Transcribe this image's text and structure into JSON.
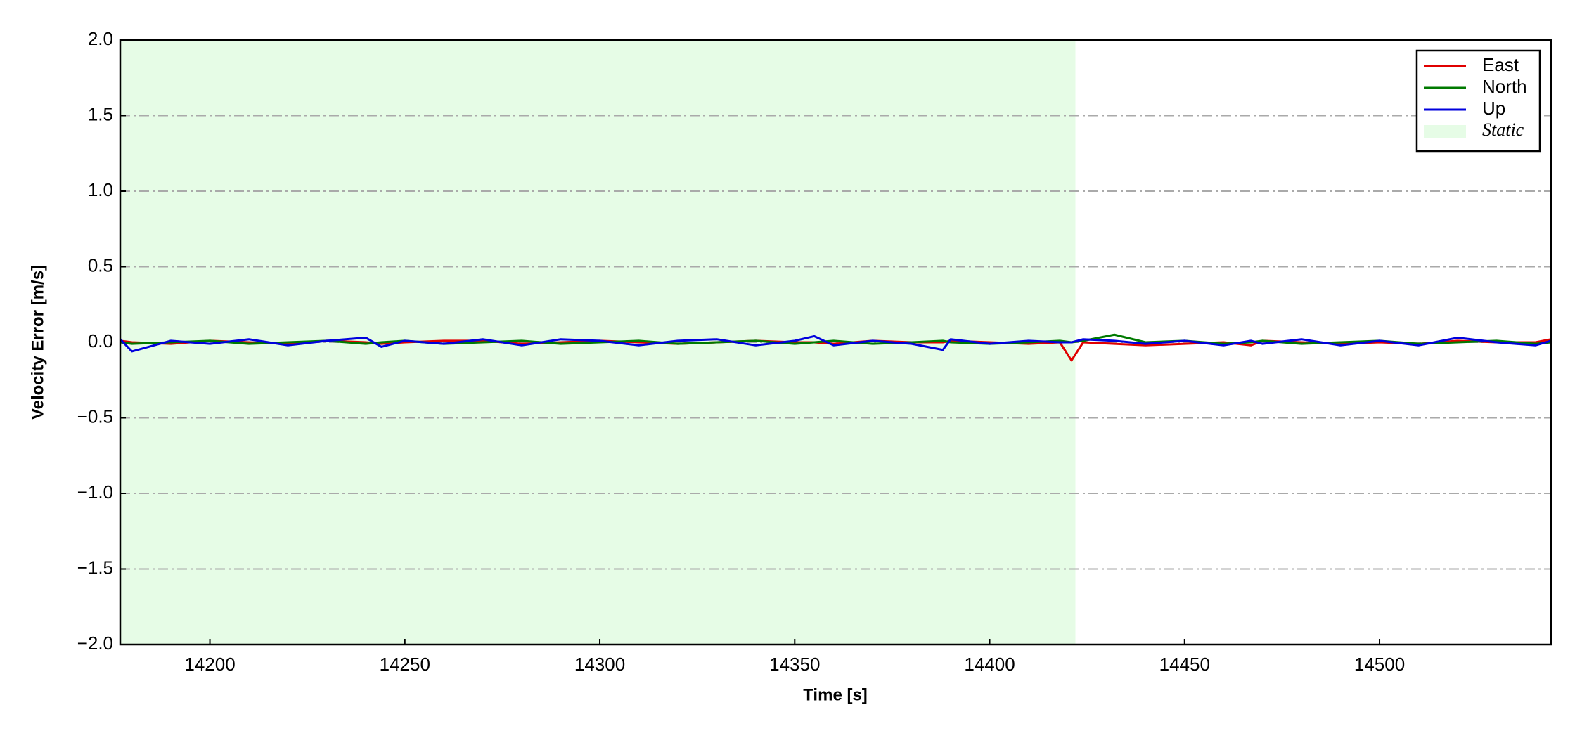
{
  "chart_data": {
    "type": "line",
    "x_label": "Time [s]",
    "y_label": "Velocity Error [m/s]",
    "x": [
      14177,
      14180,
      14190,
      14200,
      14210,
      14220,
      14230,
      14240,
      14244,
      14250,
      14260,
      14270,
      14280,
      14290,
      14300,
      14310,
      14320,
      14330,
      14340,
      14350,
      14355,
      14360,
      14370,
      14380,
      14388,
      14390,
      14400,
      14410,
      14418,
      14421,
      14424,
      14432,
      14440,
      14450,
      14460,
      14467,
      14470,
      14480,
      14490,
      14500,
      14510,
      14520,
      14530,
      14540,
      14544
    ],
    "series": [
      {
        "name": "East",
        "color": "#e00000",
        "values": [
          0.01,
          0.0,
          -0.01,
          0.01,
          0.0,
          -0.01,
          0.01,
          0.0,
          -0.01,
          0.0,
          0.01,
          0.01,
          -0.01,
          0.0,
          0.01,
          0.0,
          -0.01,
          0.0,
          0.01,
          0.0,
          0.0,
          -0.01,
          0.01,
          0.0,
          0.0,
          0.01,
          0.0,
          -0.01,
          0.0,
          -0.12,
          0.0,
          -0.01,
          -0.02,
          -0.01,
          0.0,
          -0.02,
          0.01,
          0.0,
          -0.01,
          0.0,
          -0.01,
          0.01,
          0.0,
          0.0,
          0.02
        ]
      },
      {
        "name": "North",
        "color": "#007a00",
        "values": [
          0.0,
          -0.01,
          0.0,
          0.01,
          -0.01,
          0.0,
          0.01,
          -0.01,
          0.0,
          0.01,
          -0.01,
          0.0,
          0.01,
          -0.01,
          0.0,
          0.01,
          -0.01,
          0.0,
          0.01,
          -0.01,
          0.0,
          0.01,
          -0.01,
          0.0,
          0.01,
          0.0,
          -0.01,
          0.0,
          0.01,
          0.0,
          0.01,
          0.05,
          0.0,
          0.01,
          -0.01,
          0.0,
          0.01,
          -0.01,
          0.0,
          0.01,
          -0.01,
          0.0,
          0.01,
          -0.01,
          0.0
        ]
      },
      {
        "name": "Up",
        "color": "#0000dd",
        "values": [
          0.02,
          -0.06,
          0.01,
          -0.01,
          0.02,
          -0.02,
          0.01,
          0.03,
          -0.03,
          0.01,
          -0.01,
          0.02,
          -0.02,
          0.02,
          0.01,
          -0.02,
          0.01,
          0.02,
          -0.02,
          0.01,
          0.04,
          -0.02,
          0.01,
          -0.01,
          -0.05,
          0.02,
          -0.01,
          0.01,
          0.0,
          0.0,
          0.02,
          0.01,
          -0.01,
          0.01,
          -0.02,
          0.01,
          -0.01,
          0.02,
          -0.02,
          0.01,
          -0.02,
          0.03,
          0.0,
          -0.02,
          0.01
        ]
      }
    ],
    "shade": {
      "name": "Static",
      "color": "#e6fce6",
      "range": [
        14177,
        14422
      ]
    },
    "xlim": [
      14177,
      14544
    ],
    "xticks": [
      14200,
      14250,
      14300,
      14350,
      14400,
      14450,
      14500
    ],
    "ylim": [
      -2,
      2
    ],
    "yticks": [
      {
        "value": -2,
        "label": "−2.0"
      },
      {
        "value": -1.5,
        "label": "−1.5"
      },
      {
        "value": -1,
        "label": "−1.0"
      },
      {
        "value": -0.5,
        "label": "−0.5"
      },
      {
        "value": 0,
        "label": "0.0"
      },
      {
        "value": 0.5,
        "label": "0.5"
      },
      {
        "value": 1,
        "label": "1.0"
      },
      {
        "value": 1.5,
        "label": "1.5"
      },
      {
        "value": 2,
        "label": "2.0"
      }
    ],
    "grid": true,
    "legend": "upper right"
  }
}
